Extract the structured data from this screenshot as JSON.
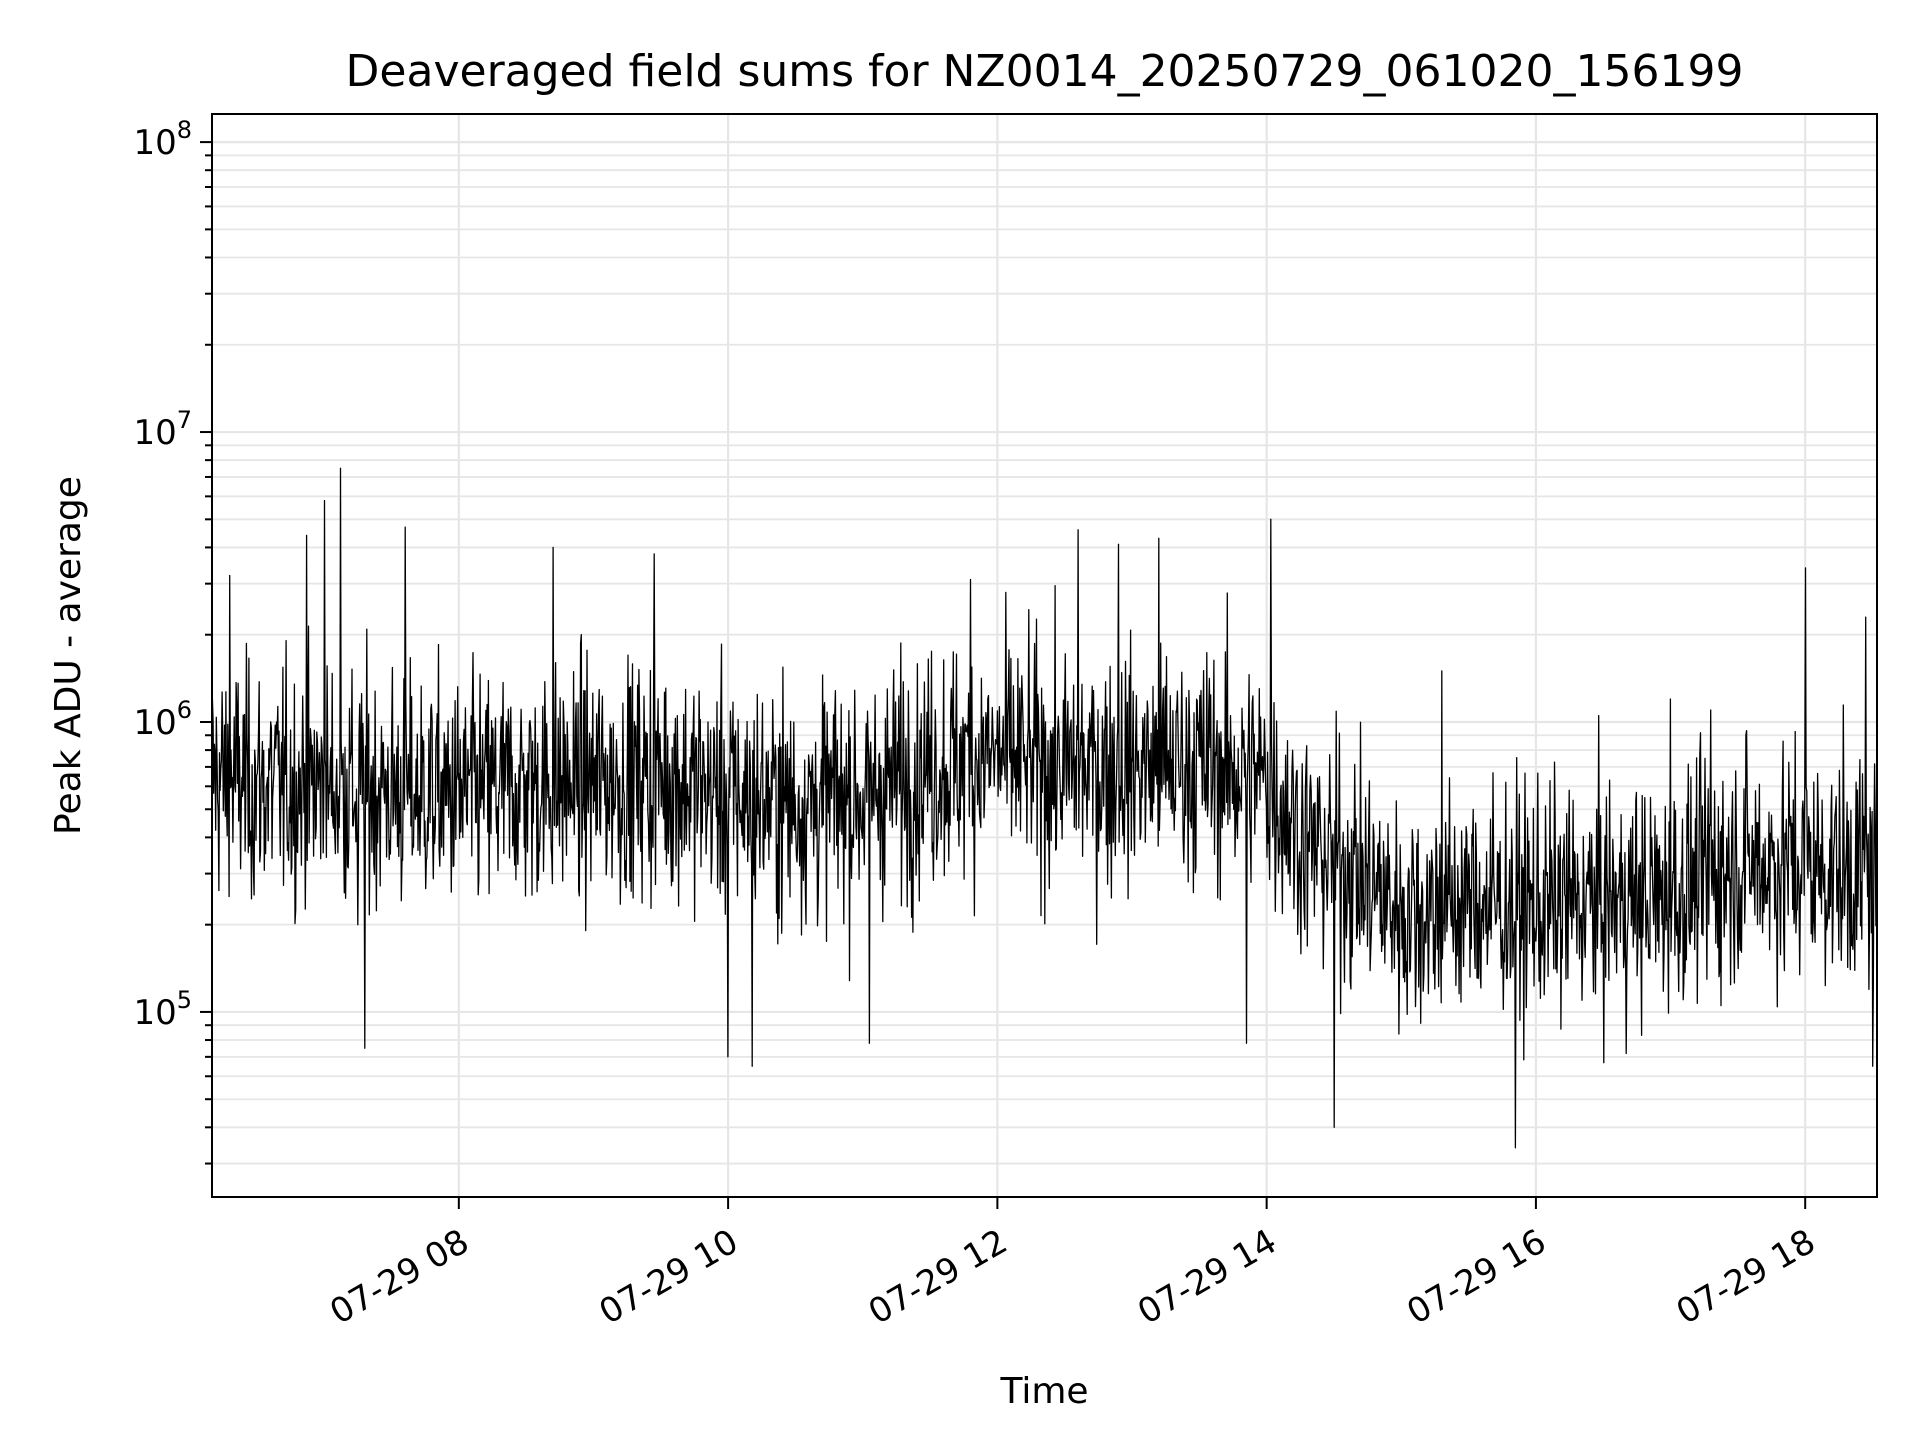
{
  "chart_data": {
    "type": "line",
    "title": "Deaveraged field sums for NZ0014_20250729_061020_156199",
    "xlabel": "Time",
    "ylabel": "Peak ADU - average",
    "x_tick_labels": [
      "07-29 08",
      "07-29 10",
      "07-29 12",
      "07-29 14",
      "07-29 16",
      "07-29 18"
    ],
    "x_tick_hours": [
      8,
      10,
      12,
      14,
      16,
      18
    ],
    "xlim": [
      "07-29 06:10",
      "07-29 18:32"
    ],
    "y_tick_values": [
      100000,
      1000000,
      10000000,
      100000000
    ],
    "y_tick_labels": [
      {
        "base": "10",
        "exp": "5"
      },
      {
        "base": "10",
        "exp": "6"
      },
      {
        "base": "10",
        "exp": "7"
      },
      {
        "base": "10",
        "exp": "8"
      }
    ],
    "ylim": [
      23000,
      125000000
    ],
    "yscale": "log",
    "grid": true,
    "line_color": "#000000",
    "grid_color": "#e6e6e6",
    "series": [
      {
        "x_hours": [
          6.17,
          6.5,
          7.0,
          7.5,
          8.0,
          8.5,
          9.0,
          9.5,
          10.0,
          10.5,
          11.0,
          11.5,
          12.0,
          12.5,
          13.0,
          13.5,
          14.0,
          14.3,
          14.6,
          15.0,
          15.5,
          16.0,
          16.5,
          17.0,
          17.5,
          18.0,
          18.53
        ],
        "y_median": [
          650000,
          600000,
          600000,
          580000,
          560000,
          600000,
          620000,
          650000,
          560000,
          520000,
          560000,
          700000,
          760000,
          680000,
          700000,
          720000,
          640000,
          380000,
          320000,
          220000,
          240000,
          230000,
          240000,
          250000,
          330000,
          320000,
          300000
        ],
        "spikes": [
          {
            "x": 6.3,
            "y": 3200000
          },
          {
            "x": 6.87,
            "y": 4400000
          },
          {
            "x": 7.0,
            "y": 5800000
          },
          {
            "x": 7.12,
            "y": 7500000
          },
          {
            "x": 7.25,
            "y": 200000
          },
          {
            "x": 7.3,
            "y": 75000
          },
          {
            "x": 7.6,
            "y": 4700000
          },
          {
            "x": 8.7,
            "y": 4000000
          },
          {
            "x": 9.45,
            "y": 3800000
          },
          {
            "x": 10.0,
            "y": 70000
          },
          {
            "x": 10.18,
            "y": 65000
          },
          {
            "x": 11.05,
            "y": 78000
          },
          {
            "x": 11.8,
            "y": 3100000
          },
          {
            "x": 12.6,
            "y": 4600000
          },
          {
            "x": 12.9,
            "y": 4100000
          },
          {
            "x": 13.2,
            "y": 4300000
          },
          {
            "x": 13.85,
            "y": 78000
          },
          {
            "x": 14.03,
            "y": 5000000
          },
          {
            "x": 14.5,
            "y": 40000
          },
          {
            "x": 15.3,
            "y": 1500000
          },
          {
            "x": 15.85,
            "y": 34000
          },
          {
            "x": 17.0,
            "y": 1200000
          },
          {
            "x": 17.3,
            "y": 1100000
          },
          {
            "x": 18.0,
            "y": 3400000
          },
          {
            "x": 18.45,
            "y": 2300000
          },
          {
            "x": 18.5,
            "y": 65000
          }
        ]
      }
    ]
  }
}
